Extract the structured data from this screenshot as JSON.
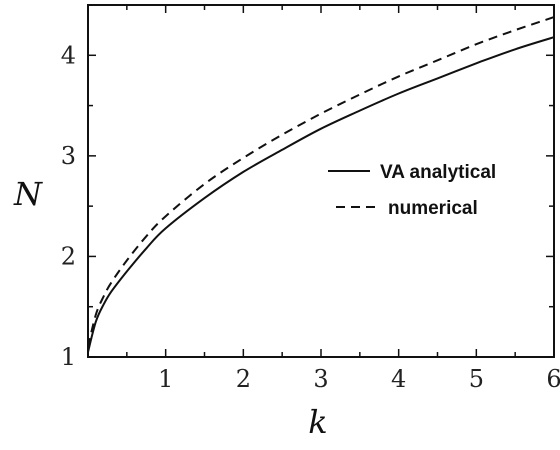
{
  "chart_data": {
    "type": "line",
    "title": "",
    "xlabel": "k",
    "ylabel": "N",
    "xlim": [
      0,
      6
    ],
    "ylim": [
      1,
      4.5
    ],
    "x_ticks": [
      {
        "value": 1,
        "label": "1"
      },
      {
        "value": 2,
        "label": "2"
      },
      {
        "value": 3,
        "label": "3"
      },
      {
        "value": 4,
        "label": "4"
      },
      {
        "value": 5,
        "label": "5"
      },
      {
        "value": 6,
        "label": "6"
      }
    ],
    "y_ticks": [
      {
        "value": 1,
        "label": "1"
      },
      {
        "value": 2,
        "label": "2"
      },
      {
        "value": 3,
        "label": "3"
      },
      {
        "value": 4,
        "label": "4"
      }
    ],
    "grid": false,
    "legend_position": "right-middle",
    "series": [
      {
        "name": "VA analytical",
        "style": "solid",
        "color": "#111111",
        "x": [
          0.0,
          0.1,
          0.2,
          0.3,
          0.5,
          0.75,
          1.0,
          1.5,
          2.0,
          2.5,
          3.0,
          3.5,
          4.0,
          4.5,
          5.0,
          5.5,
          6.0
        ],
        "y": [
          1.05,
          1.35,
          1.52,
          1.65,
          1.85,
          2.08,
          2.28,
          2.58,
          2.84,
          3.06,
          3.27,
          3.45,
          3.62,
          3.77,
          3.92,
          4.06,
          4.18
        ]
      },
      {
        "name": "numerical",
        "style": "dashed",
        "color": "#111111",
        "x": [
          0.0,
          0.1,
          0.2,
          0.3,
          0.5,
          0.75,
          1.0,
          1.5,
          2.0,
          2.5,
          3.0,
          3.5,
          4.0,
          4.5,
          5.0,
          5.5,
          6.0
        ],
        "y": [
          1.1,
          1.42,
          1.6,
          1.74,
          1.96,
          2.2,
          2.4,
          2.72,
          2.98,
          3.21,
          3.42,
          3.61,
          3.79,
          3.95,
          4.11,
          4.25,
          4.38
        ]
      }
    ]
  }
}
